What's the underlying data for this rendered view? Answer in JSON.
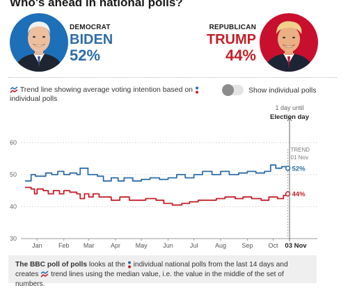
{
  "page": {
    "title": "Who's ahead in national polls?"
  },
  "candidates": {
    "dem": {
      "party": "DEMOCRAT",
      "name": "BIDEN",
      "pct": "52%",
      "color": "#2d6ca8"
    },
    "rep": {
      "party": "REPUBLICAN",
      "name": "TRUMP",
      "pct": "44%",
      "color": "#c41f27"
    }
  },
  "legend": {
    "trend_text": "Trend line showing average voting intention based on",
    "polls_text": "individual polls",
    "toggle_label": "Show individual polls",
    "toggle_on": false
  },
  "footnote": {
    "bold": "The BBC poll of polls",
    "part1": "looks at the",
    "part2": "individual national polls from the last 14 days and creates",
    "part3": "trend lines using the median value, i.e. the value in the middle of the set of numbers."
  },
  "chart_data": {
    "type": "line",
    "ylim": [
      30,
      60
    ],
    "yticks": [
      30,
      40,
      50,
      60
    ],
    "xlim": [
      "2020-01-01",
      "2020-11-03"
    ],
    "x_tick_labels": [
      "Jan",
      "Feb",
      "Mar",
      "Apr",
      "May",
      "Jun",
      "Jul",
      "Aug",
      "Sep",
      "Oct"
    ],
    "x_tick_dates": [
      "2020-01-15",
      "2020-02-15",
      "2020-03-15",
      "2020-04-15",
      "2020-05-15",
      "2020-06-15",
      "2020-07-15",
      "2020-08-15",
      "2020-09-15",
      "2020-10-15"
    ],
    "election_date": "2020-11-03",
    "election_tick_label": "03 Nov",
    "election_annotation": [
      "1 day until",
      "Election day"
    ],
    "trend_annotation": [
      "TREND",
      "01 Nov"
    ],
    "trend_date": "2020-11-01",
    "grid": true,
    "series": [
      {
        "name": "Biden",
        "color": "#2d6ca8",
        "end_label": "52%",
        "points": [
          [
            "2020-01-01",
            48
          ],
          [
            "2020-01-05",
            48
          ],
          [
            "2020-01-08",
            50
          ],
          [
            "2020-01-13",
            49.5
          ],
          [
            "2020-01-20",
            49.5
          ],
          [
            "2020-01-25",
            50.5
          ],
          [
            "2020-02-01",
            50
          ],
          [
            "2020-02-08",
            51
          ],
          [
            "2020-02-15",
            50
          ],
          [
            "2020-02-22",
            50.5
          ],
          [
            "2020-03-01",
            50
          ],
          [
            "2020-03-05",
            52
          ],
          [
            "2020-03-10",
            52
          ],
          [
            "2020-03-14",
            50
          ],
          [
            "2020-03-20",
            50
          ],
          [
            "2020-03-25",
            49.5
          ],
          [
            "2020-04-01",
            48
          ],
          [
            "2020-04-10",
            49
          ],
          [
            "2020-04-18",
            48
          ],
          [
            "2020-04-25",
            49
          ],
          [
            "2020-05-05",
            48
          ],
          [
            "2020-05-15",
            48.5
          ],
          [
            "2020-05-25",
            49
          ],
          [
            "2020-06-05",
            48.5
          ],
          [
            "2020-06-15",
            49
          ],
          [
            "2020-06-25",
            50
          ],
          [
            "2020-07-05",
            49
          ],
          [
            "2020-07-15",
            50
          ],
          [
            "2020-07-25",
            51
          ],
          [
            "2020-08-05",
            50
          ],
          [
            "2020-08-15",
            51
          ],
          [
            "2020-08-25",
            50
          ],
          [
            "2020-09-05",
            50.5
          ],
          [
            "2020-09-15",
            51
          ],
          [
            "2020-09-25",
            50.5
          ],
          [
            "2020-10-05",
            51
          ],
          [
            "2020-10-12",
            53
          ],
          [
            "2020-10-18",
            52
          ],
          [
            "2020-10-25",
            52.5
          ],
          [
            "2020-11-01",
            52
          ]
        ]
      },
      {
        "name": "Trump",
        "color": "#c41f27",
        "end_label": "44%",
        "points": [
          [
            "2020-01-01",
            46
          ],
          [
            "2020-01-08",
            45.5
          ],
          [
            "2020-01-12",
            44
          ],
          [
            "2020-01-15",
            45.5
          ],
          [
            "2020-01-22",
            45
          ],
          [
            "2020-01-28",
            44
          ],
          [
            "2020-02-03",
            45
          ],
          [
            "2020-02-10",
            44
          ],
          [
            "2020-02-15",
            45
          ],
          [
            "2020-02-22",
            44.5
          ],
          [
            "2020-03-01",
            44
          ],
          [
            "2020-03-05",
            42.5
          ],
          [
            "2020-03-10",
            44
          ],
          [
            "2020-03-15",
            43
          ],
          [
            "2020-03-20",
            44
          ],
          [
            "2020-03-27",
            43
          ],
          [
            "2020-04-01",
            43
          ],
          [
            "2020-04-10",
            42
          ],
          [
            "2020-04-20",
            43
          ],
          [
            "2020-05-01",
            42
          ],
          [
            "2020-05-10",
            42
          ],
          [
            "2020-05-20",
            42.5
          ],
          [
            "2020-06-01",
            42
          ],
          [
            "2020-06-10",
            41
          ],
          [
            "2020-06-20",
            40.5
          ],
          [
            "2020-07-01",
            41
          ],
          [
            "2020-07-10",
            41.5
          ],
          [
            "2020-07-20",
            42
          ],
          [
            "2020-08-01",
            42
          ],
          [
            "2020-08-10",
            42.5
          ],
          [
            "2020-08-20",
            43
          ],
          [
            "2020-09-01",
            42.5
          ],
          [
            "2020-09-10",
            43
          ],
          [
            "2020-09-20",
            42.5
          ],
          [
            "2020-10-01",
            42
          ],
          [
            "2020-10-10",
            43
          ],
          [
            "2020-10-20",
            42.5
          ],
          [
            "2020-10-27",
            43.5
          ],
          [
            "2020-11-01",
            44
          ]
        ]
      }
    ]
  }
}
